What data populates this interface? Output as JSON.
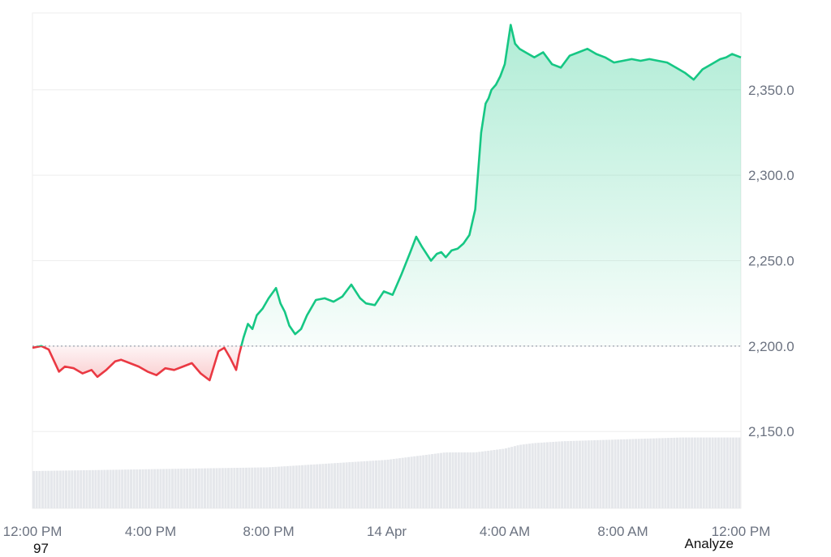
{
  "chart_data": {
    "type": "area",
    "baseline": 2200,
    "ylim": [
      2105,
      2395
    ],
    "y_ticks": [
      {
        "value": 2150,
        "label": "2,150.0"
      },
      {
        "value": 2200,
        "label": "2,200.0"
      },
      {
        "value": 2250,
        "label": "2,250.0"
      },
      {
        "value": 2300,
        "label": "2,300.0"
      },
      {
        "value": 2350,
        "label": "2,350.0"
      }
    ],
    "x_range_hours": [
      0,
      24
    ],
    "x_ticks": [
      {
        "hour": 0,
        "label": "12:00 PM"
      },
      {
        "hour": 4,
        "label": "4:00 PM"
      },
      {
        "hour": 8,
        "label": "8:00 PM"
      },
      {
        "hour": 12,
        "label": "14 Apr"
      },
      {
        "hour": 16,
        "label": "4:00 AM"
      },
      {
        "hour": 20,
        "label": "8:00 AM"
      },
      {
        "hour": 24,
        "label": "12:00 PM"
      }
    ],
    "colors": {
      "up_line": "#16c784",
      "down_line": "#ea3943",
      "up_fill": "#16c784",
      "down_fill": "#ea3943",
      "grid": "#eeeeee",
      "baseline": "#9ca3af",
      "volume": "#e5e7eb"
    },
    "grid": true,
    "series": [
      {
        "x_hours": [
          0,
          0.3,
          0.55,
          0.9,
          1.1,
          1.4,
          1.7,
          2.0,
          2.2,
          2.5,
          2.8,
          3.0,
          3.3,
          3.6,
          3.9,
          4.2,
          4.5,
          4.8,
          5.1,
          5.4,
          5.7,
          6.0,
          6.3,
          6.5,
          6.7,
          6.9,
          7.0,
          7.15,
          7.3,
          7.45,
          7.6,
          7.8,
          8.0,
          8.25,
          8.4,
          8.55,
          8.7,
          8.9,
          9.1,
          9.3,
          9.6,
          9.9,
          10.2,
          10.5,
          10.8,
          11.1,
          11.3,
          11.6,
          11.9,
          12.2,
          12.5,
          12.8,
          13.0,
          13.2,
          13.5,
          13.7,
          13.85,
          14.0,
          14.2,
          14.4,
          14.6,
          14.8,
          15.0,
          15.2,
          15.35,
          15.45,
          15.55,
          15.7,
          15.85,
          16.0,
          16.2,
          16.35,
          16.5,
          16.7,
          17.0,
          17.3,
          17.6,
          17.9,
          18.2,
          18.5,
          18.8,
          19.1,
          19.4,
          19.7,
          20.0,
          20.3,
          20.6,
          20.9,
          21.2,
          21.5,
          21.8,
          22.1,
          22.4,
          22.7,
          23.0,
          23.3,
          23.5,
          23.7,
          24.0
        ],
        "values": [
          2199,
          2200,
          2198,
          2185,
          2188,
          2187,
          2184,
          2186,
          2182,
          2186,
          2191,
          2192,
          2190,
          2188,
          2185,
          2183,
          2187,
          2186,
          2188,
          2190,
          2184,
          2180,
          2197,
          2199,
          2193,
          2186,
          2195,
          2205,
          2213,
          2210,
          2218,
          2222,
          2228,
          2234,
          2225,
          2220,
          2212,
          2207,
          2210,
          2218,
          2227,
          2228,
          2226,
          2229,
          2236,
          2228,
          2225,
          2224,
          2232,
          2230,
          2242,
          2255,
          2264,
          2258,
          2250,
          2254,
          2255,
          2252,
          2256,
          2257,
          2260,
          2265,
          2280,
          2325,
          2342,
          2345,
          2350,
          2353,
          2358,
          2365,
          2388,
          2377,
          2374,
          2372,
          2369,
          2372,
          2365,
          2363,
          2370,
          2372,
          2374,
          2371,
          2369,
          2366,
          2367,
          2368,
          2367,
          2368,
          2367,
          2366,
          2363,
          2360,
          2356,
          2362,
          2365,
          2368,
          2369,
          2371,
          2369
        ]
      }
    ],
    "volume": {
      "x_hours": [
        0,
        4,
        8,
        10,
        12,
        13,
        14,
        15,
        16,
        16.5,
        17,
        18,
        20,
        22,
        24
      ],
      "values": [
        10,
        10.5,
        11,
        12,
        13,
        14,
        15,
        15,
        16,
        17,
        17.5,
        18,
        18.5,
        19,
        19
      ]
    }
  },
  "footer": {
    "left_text": "97",
    "right_text": "Analyze"
  }
}
